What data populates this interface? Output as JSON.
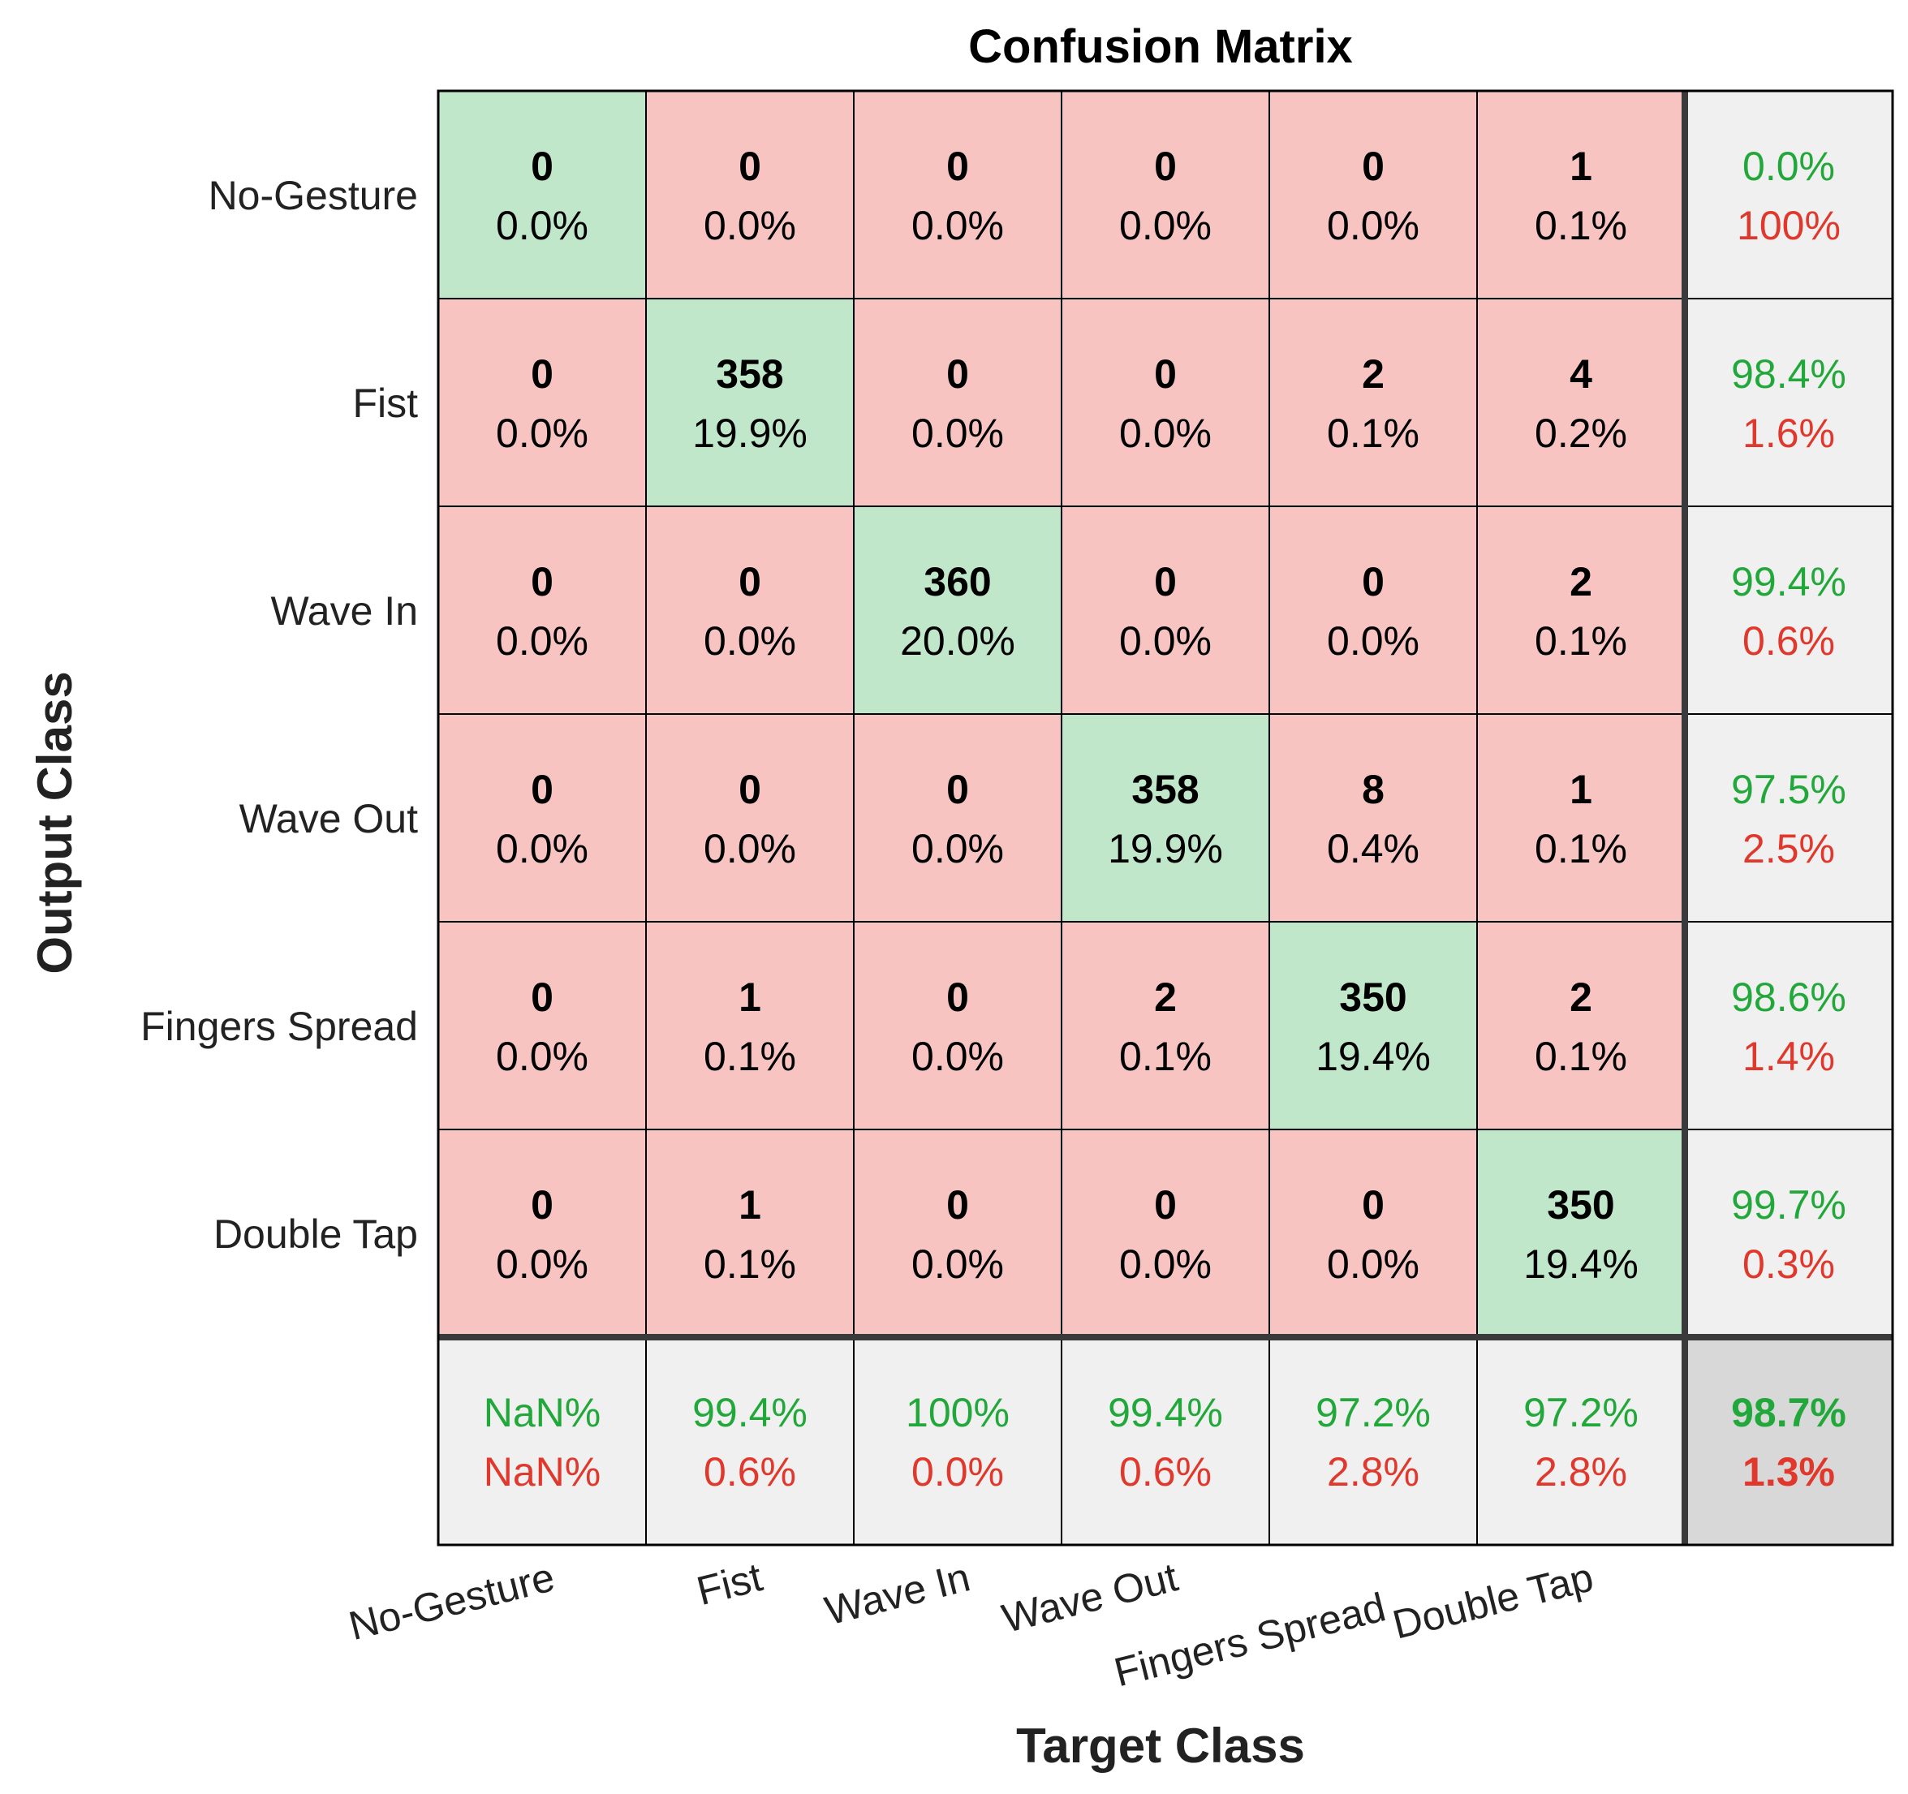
{
  "chart_data": {
    "type": "heatmap",
    "title": "Confusion Matrix",
    "xlabel": "Target Class",
    "ylabel": "Output Class",
    "row_labels": [
      "No-Gesture",
      "Fist",
      "Wave In",
      "Wave Out",
      "Fingers Spread",
      "Double Tap"
    ],
    "col_labels": [
      "No-Gesture",
      "Fist",
      "Wave In",
      "Wave Out",
      "Fingers Spread",
      "Double Tap"
    ],
    "counts": [
      [
        "0",
        "0",
        "0",
        "0",
        "0",
        "1"
      ],
      [
        "0",
        "358",
        "0",
        "0",
        "2",
        "4"
      ],
      [
        "0",
        "0",
        "360",
        "0",
        "0",
        "2"
      ],
      [
        "0",
        "0",
        "0",
        "358",
        "8",
        "1"
      ],
      [
        "0",
        "1",
        "0",
        "2",
        "350",
        "2"
      ],
      [
        "0",
        "1",
        "0",
        "0",
        "0",
        "350"
      ]
    ],
    "percents": [
      [
        "0.0%",
        "0.0%",
        "0.0%",
        "0.0%",
        "0.0%",
        "0.1%"
      ],
      [
        "0.0%",
        "19.9%",
        "0.0%",
        "0.0%",
        "0.1%",
        "0.2%"
      ],
      [
        "0.0%",
        "0.0%",
        "20.0%",
        "0.0%",
        "0.0%",
        "0.1%"
      ],
      [
        "0.0%",
        "0.0%",
        "0.0%",
        "19.9%",
        "0.4%",
        "0.1%"
      ],
      [
        "0.0%",
        "0.1%",
        "0.0%",
        "0.1%",
        "19.4%",
        "0.1%"
      ],
      [
        "0.0%",
        "0.1%",
        "0.0%",
        "0.0%",
        "0.0%",
        "19.4%"
      ]
    ],
    "row_summary": [
      {
        "correct": "0.0%",
        "incorrect": "100%"
      },
      {
        "correct": "98.4%",
        "incorrect": "1.6%"
      },
      {
        "correct": "99.4%",
        "incorrect": "0.6%"
      },
      {
        "correct": "97.5%",
        "incorrect": "2.5%"
      },
      {
        "correct": "98.6%",
        "incorrect": "1.4%"
      },
      {
        "correct": "99.7%",
        "incorrect": "0.3%"
      }
    ],
    "col_summary": [
      {
        "correct": "NaN%",
        "incorrect": "NaN%"
      },
      {
        "correct": "99.4%",
        "incorrect": "0.6%"
      },
      {
        "correct": "100%",
        "incorrect": "0.0%"
      },
      {
        "correct": "99.4%",
        "incorrect": "0.6%"
      },
      {
        "correct": "97.2%",
        "incorrect": "2.8%"
      },
      {
        "correct": "97.2%",
        "incorrect": "2.8%"
      }
    ],
    "overall": {
      "correct": "98.7%",
      "incorrect": "1.3%"
    },
    "colors": {
      "diagonal": "#c0e7c9",
      "off_diagonal": "#f7c4c1",
      "summary": "#f0f0f0",
      "overall": "#d8d8d8",
      "correct_text": "#22a83a",
      "incorrect_text": "#e0382c",
      "text": "#000000",
      "label_text": "#222222"
    }
  }
}
